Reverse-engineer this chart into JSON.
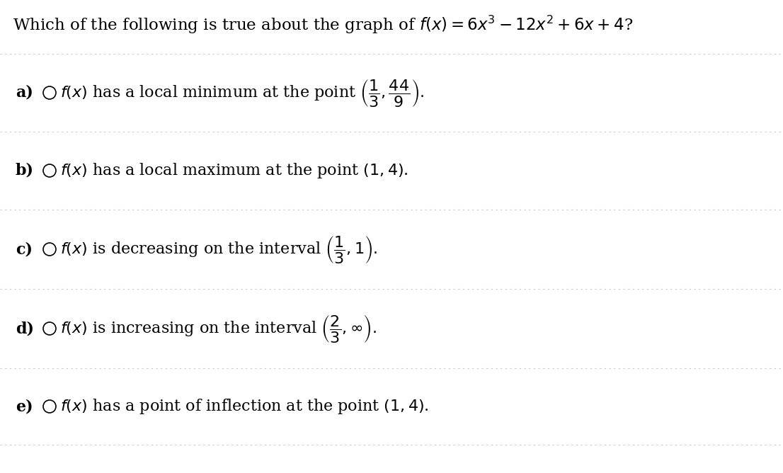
{
  "title": "Which of the following is true about the graph of $f(x) = 6x^3 - 12x^2 + 6x + 4$?",
  "background_color": "#ffffff",
  "text_color": "#000000",
  "divider_color": "#c8c8c8",
  "options": [
    {
      "label": "a)",
      "part1": "$f(x)$ has a local minimum at the point ",
      "math": "$\\left(\\dfrac{1}{3}, \\dfrac{44}{9}\\right).$"
    },
    {
      "label": "b)",
      "part1": "$f(x)$ has a local maximum at the point $(1, 4)$.",
      "math": ""
    },
    {
      "label": "c)",
      "part1": "$f(x)$ is decreasing on the interval ",
      "math": "$\\left(\\dfrac{1}{3}, 1\\right).$"
    },
    {
      "label": "d)",
      "part1": "$f(x)$ is increasing on the interval ",
      "math": "$\\left(\\dfrac{2}{3}, \\infty\\right).$"
    },
    {
      "label": "e)",
      "part1": "$f(x)$ has a point of inflection at the point $(1, 4)$.",
      "math": ""
    }
  ],
  "title_fontsize": 16.5,
  "option_fontsize": 16,
  "label_fontsize": 16
}
